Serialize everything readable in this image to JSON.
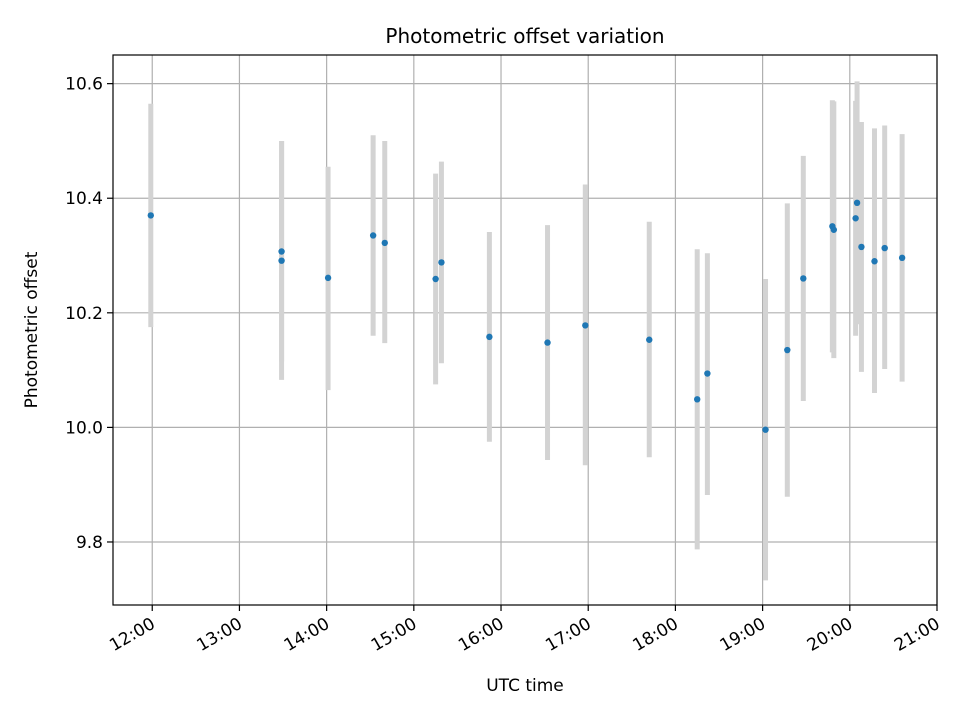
{
  "chart_data": {
    "type": "scatter",
    "title": "Photometric offset variation",
    "xlabel": "UTC time",
    "ylabel": "Photometric offset",
    "xlim": [
      "11:33",
      "21:00"
    ],
    "ylim": [
      9.69,
      10.65
    ],
    "xticks": [
      "12:00",
      "13:00",
      "14:00",
      "15:00",
      "16:00",
      "17:00",
      "18:00",
      "19:00",
      "20:00",
      "21:00"
    ],
    "yticks": [
      9.8,
      10.0,
      10.2,
      10.4,
      10.6
    ],
    "grid": true,
    "legend": "none",
    "marker_color": "#1f77b4",
    "errorbar_color": "#d3d3d3",
    "points": [
      {
        "t": "11:59",
        "y": 10.37,
        "lo": 10.175,
        "hi": 10.565
      },
      {
        "t": "13:29",
        "y": 10.307,
        "lo": 10.115,
        "hi": 10.5
      },
      {
        "t": "13:29",
        "y": 10.291,
        "lo": 10.083,
        "hi": 10.5
      },
      {
        "t": "14:01",
        "y": 10.261,
        "lo": 10.065,
        "hi": 10.455
      },
      {
        "t": "14:32",
        "y": 10.335,
        "lo": 10.16,
        "hi": 10.51
      },
      {
        "t": "14:40",
        "y": 10.322,
        "lo": 10.147,
        "hi": 10.5
      },
      {
        "t": "15:15",
        "y": 10.259,
        "lo": 10.075,
        "hi": 10.443
      },
      {
        "t": "15:19",
        "y": 10.288,
        "lo": 10.112,
        "hi": 10.464
      },
      {
        "t": "15:52",
        "y": 10.158,
        "lo": 9.975,
        "hi": 10.341
      },
      {
        "t": "16:32",
        "y": 10.148,
        "lo": 9.943,
        "hi": 10.353
      },
      {
        "t": "16:58",
        "y": 10.178,
        "lo": 9.934,
        "hi": 10.424
      },
      {
        "t": "17:42",
        "y": 10.153,
        "lo": 9.948,
        "hi": 10.359
      },
      {
        "t": "18:15",
        "y": 10.049,
        "lo": 9.787,
        "hi": 10.311
      },
      {
        "t": "18:22",
        "y": 10.094,
        "lo": 9.882,
        "hi": 10.304
      },
      {
        "t": "19:02",
        "y": 9.996,
        "lo": 9.733,
        "hi": 10.259
      },
      {
        "t": "19:17",
        "y": 10.135,
        "lo": 9.879,
        "hi": 10.391
      },
      {
        "t": "19:28",
        "y": 10.26,
        "lo": 10.046,
        "hi": 10.474
      },
      {
        "t": "19:48",
        "y": 10.351,
        "lo": 10.131,
        "hi": 10.571
      },
      {
        "t": "19:49",
        "y": 10.345,
        "lo": 10.121,
        "hi": 10.569
      },
      {
        "t": "20:04",
        "y": 10.365,
        "lo": 10.16,
        "hi": 10.57
      },
      {
        "t": "20:05",
        "y": 10.392,
        "lo": 10.18,
        "hi": 10.604
      },
      {
        "t": "20:08",
        "y": 10.315,
        "lo": 10.097,
        "hi": 10.533
      },
      {
        "t": "20:17",
        "y": 10.29,
        "lo": 10.06,
        "hi": 10.522
      },
      {
        "t": "20:24",
        "y": 10.313,
        "lo": 10.102,
        "hi": 10.527
      },
      {
        "t": "20:36",
        "y": 10.296,
        "lo": 10.08,
        "hi": 10.512
      }
    ]
  }
}
